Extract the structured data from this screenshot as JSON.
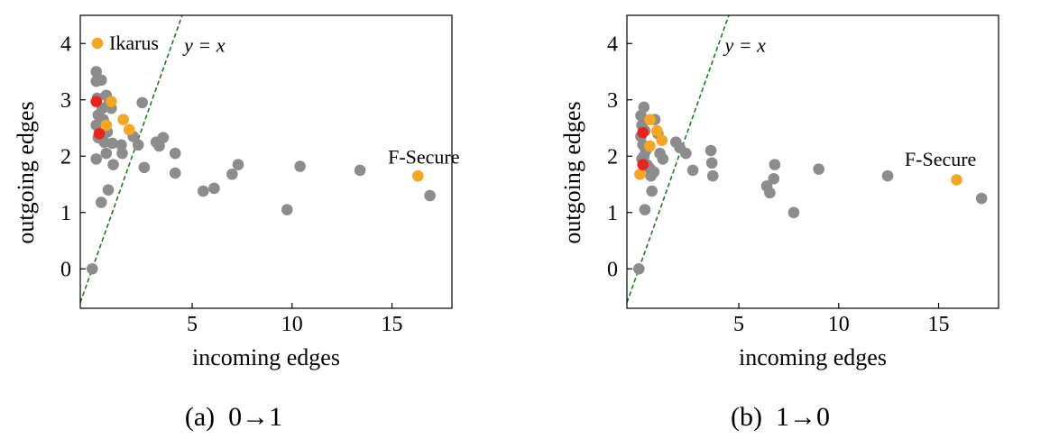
{
  "chart_data": [
    {
      "type": "scatter",
      "caption": "(a)  0→1",
      "xlabel": "incoming edges",
      "ylabel": "outgoing edges",
      "xlim": [
        -0.6,
        18
      ],
      "ylim": [
        -0.7,
        4.5
      ],
      "xticks": [
        5,
        10,
        15
      ],
      "yticks": [
        0,
        1,
        2,
        3,
        4
      ],
      "grid": false,
      "legend": "top-left",
      "legend_label": "Ikarus",
      "reference_line": {
        "label": "y = x",
        "label_position": [
          4.6,
          3.85
        ],
        "color": "#1e7b1e",
        "style": "dashed"
      },
      "annotations": [
        {
          "text": "F-Secure",
          "x": 14.8,
          "y": 1.87
        }
      ],
      "series": [
        {
          "color": "#8c8c8c",
          "points": [
            [
              0,
              0
            ],
            [
              0.2,
              3.5
            ],
            [
              0.2,
              3.33
            ],
            [
              0.25,
              3.03
            ],
            [
              0.3,
              2.73
            ],
            [
              0.2,
              2.55
            ],
            [
              0.3,
              2.33
            ],
            [
              0.2,
              1.95
            ],
            [
              0.45,
              3.35
            ],
            [
              0.5,
              2.85
            ],
            [
              0.55,
              2.65
            ],
            [
              0.6,
              2.25
            ],
            [
              0.7,
              3.08
            ],
            [
              0.7,
              2.05
            ],
            [
              0.75,
              2.43
            ],
            [
              0.85,
              2.95
            ],
            [
              0.8,
              1.4
            ],
            [
              0.95,
              2.85
            ],
            [
              1.0,
              2.23
            ],
            [
              1.05,
              1.85
            ],
            [
              0.45,
              1.18
            ],
            [
              1.45,
              2.2
            ],
            [
              1.5,
              2.05
            ],
            [
              2.05,
              2.35
            ],
            [
              2.3,
              2.2
            ],
            [
              2.5,
              2.95
            ],
            [
              2.6,
              1.8
            ],
            [
              3.2,
              2.25
            ],
            [
              3.35,
              2.18
            ],
            [
              3.55,
              2.33
            ],
            [
              4.15,
              2.05
            ],
            [
              4.15,
              1.7
            ],
            [
              5.55,
              1.38
            ],
            [
              6.1,
              1.43
            ],
            [
              7.0,
              1.68
            ],
            [
              7.3,
              1.85
            ],
            [
              9.75,
              1.05
            ],
            [
              10.4,
              1.82
            ],
            [
              13.4,
              1.75
            ],
            [
              16.9,
              1.3
            ]
          ]
        },
        {
          "color": "#f5a623",
          "points": [
            [
              0.7,
              2.55
            ],
            [
              0.95,
              2.97
            ],
            [
              1.55,
              2.65
            ],
            [
              1.85,
              2.47
            ],
            [
              16.3,
              1.65
            ]
          ]
        },
        {
          "color": "#e8241c",
          "points": [
            [
              0.2,
              2.97
            ],
            [
              0.35,
              2.4
            ]
          ]
        }
      ]
    },
    {
      "type": "scatter",
      "caption": "(b)  1→0",
      "xlabel": "incoming edges",
      "ylabel": "outgoing edges",
      "xlim": [
        -0.6,
        18
      ],
      "ylim": [
        -0.7,
        4.5
      ],
      "xticks": [
        5,
        10,
        15
      ],
      "yticks": [
        0,
        1,
        2,
        3,
        4
      ],
      "grid": false,
      "reference_line": {
        "label": "y = x",
        "label_position": [
          4.3,
          3.85
        ],
        "color": "#1e7b1e",
        "style": "dashed"
      },
      "annotations": [
        {
          "text": "F-Secure",
          "x": 13.3,
          "y": 1.83
        }
      ],
      "series": [
        {
          "color": "#8c8c8c",
          "points": [
            [
              0,
              0
            ],
            [
              0.25,
              2.87
            ],
            [
              0.1,
              2.72
            ],
            [
              0.15,
              2.55
            ],
            [
              0.1,
              2.35
            ],
            [
              0.2,
              2.2
            ],
            [
              0.3,
              2.45
            ],
            [
              0.35,
              2.1
            ],
            [
              0.15,
              1.95
            ],
            [
              0.25,
              2.0
            ],
            [
              0.4,
              1.85
            ],
            [
              0.55,
              1.78
            ],
            [
              0.6,
              1.65
            ],
            [
              0.75,
              1.72
            ],
            [
              0.8,
              2.65
            ],
            [
              0.95,
              2.4
            ],
            [
              1.05,
              2.05
            ],
            [
              1.2,
              1.95
            ],
            [
              0.65,
              1.38
            ],
            [
              0.3,
              1.05
            ],
            [
              1.85,
              2.25
            ],
            [
              2.05,
              2.15
            ],
            [
              2.35,
              2.05
            ],
            [
              2.7,
              1.75
            ],
            [
              3.6,
              2.1
            ],
            [
              3.65,
              1.88
            ],
            [
              3.7,
              1.65
            ],
            [
              6.4,
              1.47
            ],
            [
              6.55,
              1.35
            ],
            [
              6.75,
              1.6
            ],
            [
              6.8,
              1.85
            ],
            [
              7.75,
              1.0
            ],
            [
              9.0,
              1.77
            ],
            [
              12.45,
              1.65
            ],
            [
              17.15,
              1.25
            ]
          ]
        },
        {
          "color": "#f5a623",
          "points": [
            [
              0.55,
              2.65
            ],
            [
              0.9,
              2.45
            ],
            [
              1.15,
              2.28
            ],
            [
              0.55,
              2.18
            ],
            [
              0.05,
              1.68
            ],
            [
              15.9,
              1.58
            ]
          ]
        },
        {
          "color": "#e8241c",
          "points": [
            [
              0.2,
              2.42
            ],
            [
              0.2,
              1.85
            ]
          ]
        }
      ]
    }
  ]
}
